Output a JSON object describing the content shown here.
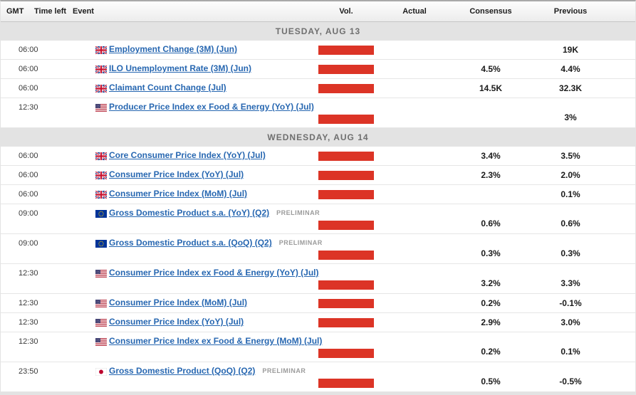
{
  "table": {
    "headers": {
      "gmt": "GMT",
      "time_left": "Time left",
      "event": "Event",
      "vol": "Vol.",
      "actual": "Actual",
      "consensus": "Consensus",
      "previous": "Previous"
    }
  },
  "colors": {
    "bar_red": "#dc3426",
    "link_blue": "#2767b1",
    "section_band_bg": "#e3e3e3"
  },
  "sections": [
    {
      "date_label": "TUESDAY, AUG 13",
      "rows": [
        {
          "gmt": "06:00",
          "time_left": "",
          "country": "gb",
          "event": "Employment Change (3M) (Jun)",
          "tag": "",
          "vol": "high",
          "actual": "",
          "consensus": "",
          "previous": "19K",
          "two_line": false
        },
        {
          "gmt": "06:00",
          "time_left": "",
          "country": "gb",
          "event": "ILO Unemployment Rate (3M) (Jun)",
          "tag": "",
          "vol": "high",
          "actual": "",
          "consensus": "4.5%",
          "previous": "4.4%",
          "two_line": false
        },
        {
          "gmt": "06:00",
          "time_left": "",
          "country": "gb",
          "event": "Claimant Count Change (Jul)",
          "tag": "",
          "vol": "high",
          "actual": "",
          "consensus": "14.5K",
          "previous": "32.3K",
          "two_line": false
        },
        {
          "gmt": "12:30",
          "time_left": "",
          "country": "us",
          "event": "Producer Price Index ex Food & Energy (YoY) (Jul)",
          "tag": "",
          "vol": "high",
          "actual": "",
          "consensus": "",
          "previous": "3%",
          "two_line": true
        }
      ]
    },
    {
      "date_label": "WEDNESDAY, AUG 14",
      "rows": [
        {
          "gmt": "06:00",
          "time_left": "",
          "country": "gb",
          "event": "Core Consumer Price Index (YoY) (Jul)",
          "tag": "",
          "vol": "high",
          "actual": "",
          "consensus": "3.4%",
          "previous": "3.5%",
          "two_line": false
        },
        {
          "gmt": "06:00",
          "time_left": "",
          "country": "gb",
          "event": "Consumer Price Index (YoY) (Jul)",
          "tag": "",
          "vol": "high",
          "actual": "",
          "consensus": "2.3%",
          "previous": "2.0%",
          "two_line": false
        },
        {
          "gmt": "06:00",
          "time_left": "",
          "country": "gb",
          "event": "Consumer Price Index (MoM) (Jul)",
          "tag": "",
          "vol": "high",
          "actual": "",
          "consensus": "",
          "previous": "0.1%",
          "two_line": false
        },
        {
          "gmt": "09:00",
          "time_left": "",
          "country": "eu",
          "event": "Gross Domestic Product s.a. (YoY) (Q2)",
          "tag": "PRELIMINAR",
          "vol": "high",
          "actual": "",
          "consensus": "0.6%",
          "previous": "0.6%",
          "two_line": true
        },
        {
          "gmt": "09:00",
          "time_left": "",
          "country": "eu",
          "event": "Gross Domestic Product s.a. (QoQ) (Q2)",
          "tag": "PRELIMINAR",
          "vol": "high",
          "actual": "",
          "consensus": "0.3%",
          "previous": "0.3%",
          "two_line": true
        },
        {
          "gmt": "12:30",
          "time_left": "",
          "country": "us",
          "event": "Consumer Price Index ex Food & Energy (YoY) (Jul)",
          "tag": "",
          "vol": "high",
          "actual": "",
          "consensus": "3.2%",
          "previous": "3.3%",
          "two_line": true
        },
        {
          "gmt": "12:30",
          "time_left": "",
          "country": "us",
          "event": "Consumer Price Index (MoM) (Jul)",
          "tag": "",
          "vol": "high",
          "actual": "",
          "consensus": "0.2%",
          "previous": "-0.1%",
          "two_line": false
        },
        {
          "gmt": "12:30",
          "time_left": "",
          "country": "us",
          "event": "Consumer Price Index (YoY) (Jul)",
          "tag": "",
          "vol": "high",
          "actual": "",
          "consensus": "2.9%",
          "previous": "3.0%",
          "two_line": false
        },
        {
          "gmt": "12:30",
          "time_left": "",
          "country": "us",
          "event": "Consumer Price Index ex Food & Energy (MoM) (Jul)",
          "tag": "",
          "vol": "high",
          "actual": "",
          "consensus": "0.2%",
          "previous": "0.1%",
          "two_line": true
        },
        {
          "gmt": "23:50",
          "time_left": "",
          "country": "jp",
          "event": "Gross Domestic Product (QoQ) (Q2)",
          "tag": "PRELIMINAR",
          "vol": "high",
          "actual": "",
          "consensus": "0.5%",
          "previous": "-0.5%",
          "two_line": true
        }
      ]
    }
  ]
}
